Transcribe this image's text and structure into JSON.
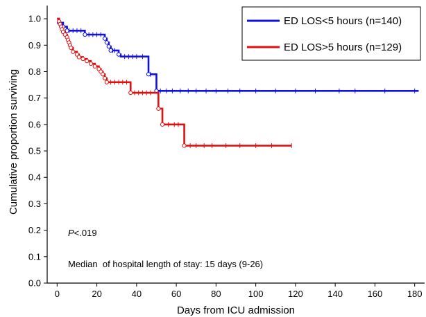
{
  "chart_data": {
    "type": "line",
    "subtype": "kaplan-meier",
    "title": "",
    "xlabel": "Days from ICU admission",
    "ylabel": "Cumulative proportion surviving",
    "xlim": [
      -5,
      185
    ],
    "ylim": [
      0,
      1.05
    ],
    "xticks": [
      0,
      20,
      40,
      60,
      80,
      100,
      120,
      140,
      160,
      180
    ],
    "yticks": [
      0.0,
      0.1,
      0.2,
      0.3,
      0.4,
      0.5,
      0.6,
      0.7,
      0.8,
      0.9,
      1.0
    ],
    "ytick_labels": [
      "0.0",
      "0.1",
      "0.2",
      "0.3",
      "0.4",
      "0.5",
      "0.6",
      "0.7",
      "0.8",
      "0.9",
      "1.0"
    ],
    "grid": false,
    "legend_position": "top-right",
    "series": [
      {
        "name": "ED LOS<5 hours (n=140)",
        "color": "#1010e0",
        "steps": [
          [
            0,
            1.0
          ],
          [
            1,
            0.985
          ],
          [
            3,
            0.97
          ],
          [
            5,
            0.955
          ],
          [
            14,
            0.94
          ],
          [
            24,
            0.925
          ],
          [
            25,
            0.91
          ],
          [
            26,
            0.895
          ],
          [
            27,
            0.88
          ],
          [
            31,
            0.865
          ],
          [
            32,
            0.857
          ],
          [
            46,
            0.79
          ],
          [
            50,
            0.727
          ],
          [
            182,
            0.727
          ]
        ],
        "events": [
          [
            1,
            0.985
          ],
          [
            3,
            0.97
          ],
          [
            5,
            0.955
          ],
          [
            14,
            0.94
          ],
          [
            24,
            0.925
          ],
          [
            25,
            0.91
          ],
          [
            26,
            0.895
          ],
          [
            27,
            0.88
          ],
          [
            31,
            0.865
          ],
          [
            46,
            0.79
          ],
          [
            50,
            0.727
          ]
        ],
        "censored": [
          [
            6,
            0.955
          ],
          [
            8,
            0.955
          ],
          [
            10,
            0.955
          ],
          [
            12,
            0.955
          ],
          [
            16,
            0.94
          ],
          [
            18,
            0.94
          ],
          [
            20,
            0.94
          ],
          [
            22,
            0.94
          ],
          [
            28,
            0.88
          ],
          [
            29,
            0.88
          ],
          [
            34,
            0.857
          ],
          [
            36,
            0.857
          ],
          [
            38,
            0.857
          ],
          [
            40,
            0.857
          ],
          [
            43,
            0.857
          ],
          [
            47,
            0.79
          ],
          [
            52,
            0.727
          ],
          [
            55,
            0.727
          ],
          [
            58,
            0.727
          ],
          [
            62,
            0.727
          ],
          [
            66,
            0.727
          ],
          [
            70,
            0.727
          ],
          [
            75,
            0.727
          ],
          [
            80,
            0.727
          ],
          [
            86,
            0.727
          ],
          [
            92,
            0.727
          ],
          [
            100,
            0.727
          ],
          [
            110,
            0.727
          ],
          [
            120,
            0.727
          ],
          [
            130,
            0.727
          ],
          [
            142,
            0.727
          ],
          [
            150,
            0.727
          ],
          [
            165,
            0.727
          ],
          [
            180,
            0.727
          ]
        ]
      },
      {
        "name": "ED LOS>5 hours (n=129)",
        "color": "#e01010",
        "steps": [
          [
            0,
            1.0
          ],
          [
            1,
            0.99
          ],
          [
            1.5,
            0.98
          ],
          [
            2,
            0.97
          ],
          [
            2.5,
            0.96
          ],
          [
            3,
            0.95
          ],
          [
            4,
            0.94
          ],
          [
            5,
            0.93
          ],
          [
            5.5,
            0.92
          ],
          [
            6,
            0.91
          ],
          [
            6.5,
            0.9
          ],
          [
            7,
            0.89
          ],
          [
            8,
            0.875
          ],
          [
            10,
            0.865
          ],
          [
            11,
            0.855
          ],
          [
            13,
            0.848
          ],
          [
            15,
            0.84
          ],
          [
            17,
            0.83
          ],
          [
            19,
            0.82
          ],
          [
            21,
            0.81
          ],
          [
            22,
            0.8
          ],
          [
            23,
            0.79
          ],
          [
            24,
            0.775
          ],
          [
            25,
            0.76
          ],
          [
            37,
            0.72
          ],
          [
            51,
            0.66
          ],
          [
            53,
            0.6
          ],
          [
            64,
            0.52
          ],
          [
            118,
            0.52
          ]
        ],
        "events": [
          [
            1,
            0.99
          ],
          [
            1.5,
            0.98
          ],
          [
            2,
            0.97
          ],
          [
            2.5,
            0.96
          ],
          [
            3,
            0.95
          ],
          [
            4,
            0.94
          ],
          [
            5,
            0.93
          ],
          [
            5.5,
            0.92
          ],
          [
            6,
            0.91
          ],
          [
            6.5,
            0.9
          ],
          [
            7,
            0.89
          ],
          [
            8,
            0.875
          ],
          [
            10,
            0.865
          ],
          [
            11,
            0.855
          ],
          [
            13,
            0.848
          ],
          [
            15,
            0.84
          ],
          [
            17,
            0.83
          ],
          [
            19,
            0.82
          ],
          [
            21,
            0.81
          ],
          [
            22,
            0.8
          ],
          [
            23,
            0.79
          ],
          [
            24,
            0.775
          ],
          [
            25,
            0.76
          ],
          [
            37,
            0.72
          ],
          [
            51,
            0.66
          ],
          [
            53,
            0.6
          ],
          [
            64,
            0.52
          ]
        ],
        "censored": [
          [
            27,
            0.76
          ],
          [
            29,
            0.76
          ],
          [
            31,
            0.76
          ],
          [
            33,
            0.76
          ],
          [
            35,
            0.76
          ],
          [
            39,
            0.72
          ],
          [
            41,
            0.72
          ],
          [
            43,
            0.72
          ],
          [
            45,
            0.72
          ],
          [
            47,
            0.72
          ],
          [
            56,
            0.6
          ],
          [
            59,
            0.6
          ],
          [
            61,
            0.6
          ],
          [
            67,
            0.52
          ],
          [
            70,
            0.52
          ],
          [
            74,
            0.52
          ],
          [
            78,
            0.52
          ],
          [
            85,
            0.52
          ],
          [
            92,
            0.52
          ],
          [
            100,
            0.52
          ],
          [
            108,
            0.52
          ],
          [
            118,
            0.52
          ]
        ]
      }
    ],
    "annotations": [
      {
        "text_italic": "P",
        "text": "<.019"
      },
      {
        "text": "Median  of hospital length of stay: 15 days (9-26)"
      }
    ]
  }
}
